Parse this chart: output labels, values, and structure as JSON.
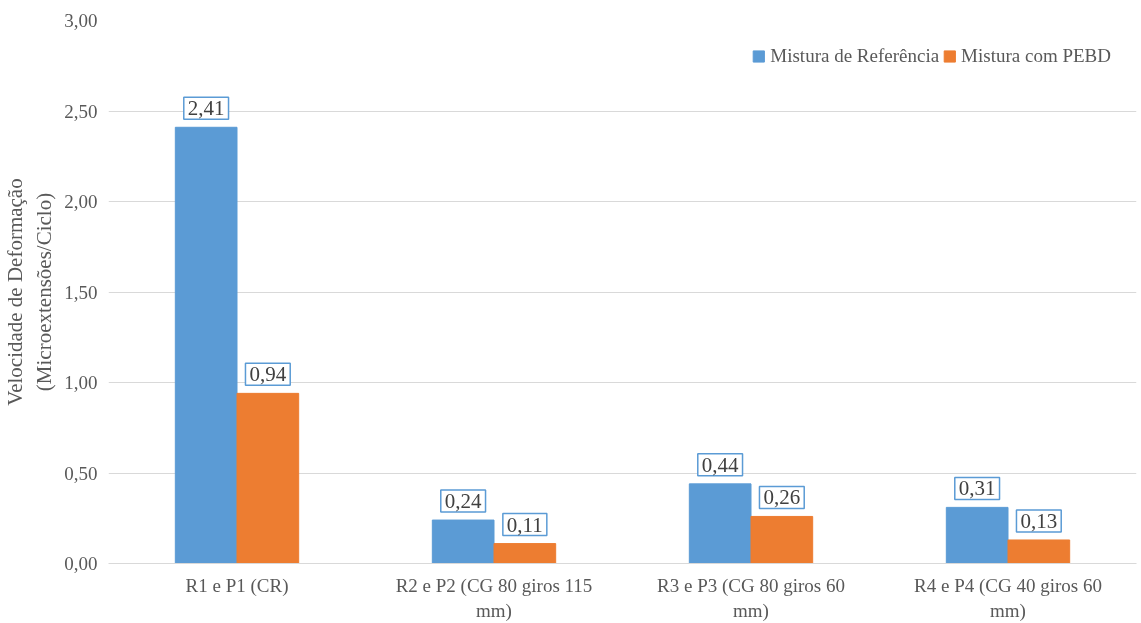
{
  "chart_data": {
    "type": "bar",
    "ylabel": "Velocidade de Deformação\n(Microextensões/Ciclo)",
    "categories": [
      "R1 e P1 (CR)",
      "R2 e P2 (CG 80 giros 115 mm)",
      "R3 e P3 (CG 80 giros 60 mm)",
      "R4 e P4 (CG 40 giros 60 mm)"
    ],
    "series": [
      {
        "name": "Mistura de Referência",
        "color": "#5b9bd5",
        "values": [
          2.41,
          0.24,
          0.44,
          0.31
        ],
        "value_labels": [
          "2,41",
          "0,24",
          "0,44",
          "0,31"
        ]
      },
      {
        "name": "Mistura com PEBD",
        "color": "#ed7d31",
        "values": [
          0.94,
          0.11,
          0.26,
          0.13
        ],
        "value_labels": [
          "0,94",
          "0,11",
          "0,26",
          "0,13"
        ]
      }
    ],
    "ylim": [
      0,
      3
    ],
    "yticks": [
      {
        "value": 0,
        "label": "0,00"
      },
      {
        "value": 0.5,
        "label": "0,50"
      },
      {
        "value": 1,
        "label": "1,00"
      },
      {
        "value": 1.5,
        "label": "1,50"
      },
      {
        "value": 2,
        "label": "2,00"
      },
      {
        "value": 2.5,
        "label": "2,50"
      },
      {
        "value": 3,
        "label": "3,00"
      }
    ],
    "grid": "y",
    "legend": "top right"
  }
}
